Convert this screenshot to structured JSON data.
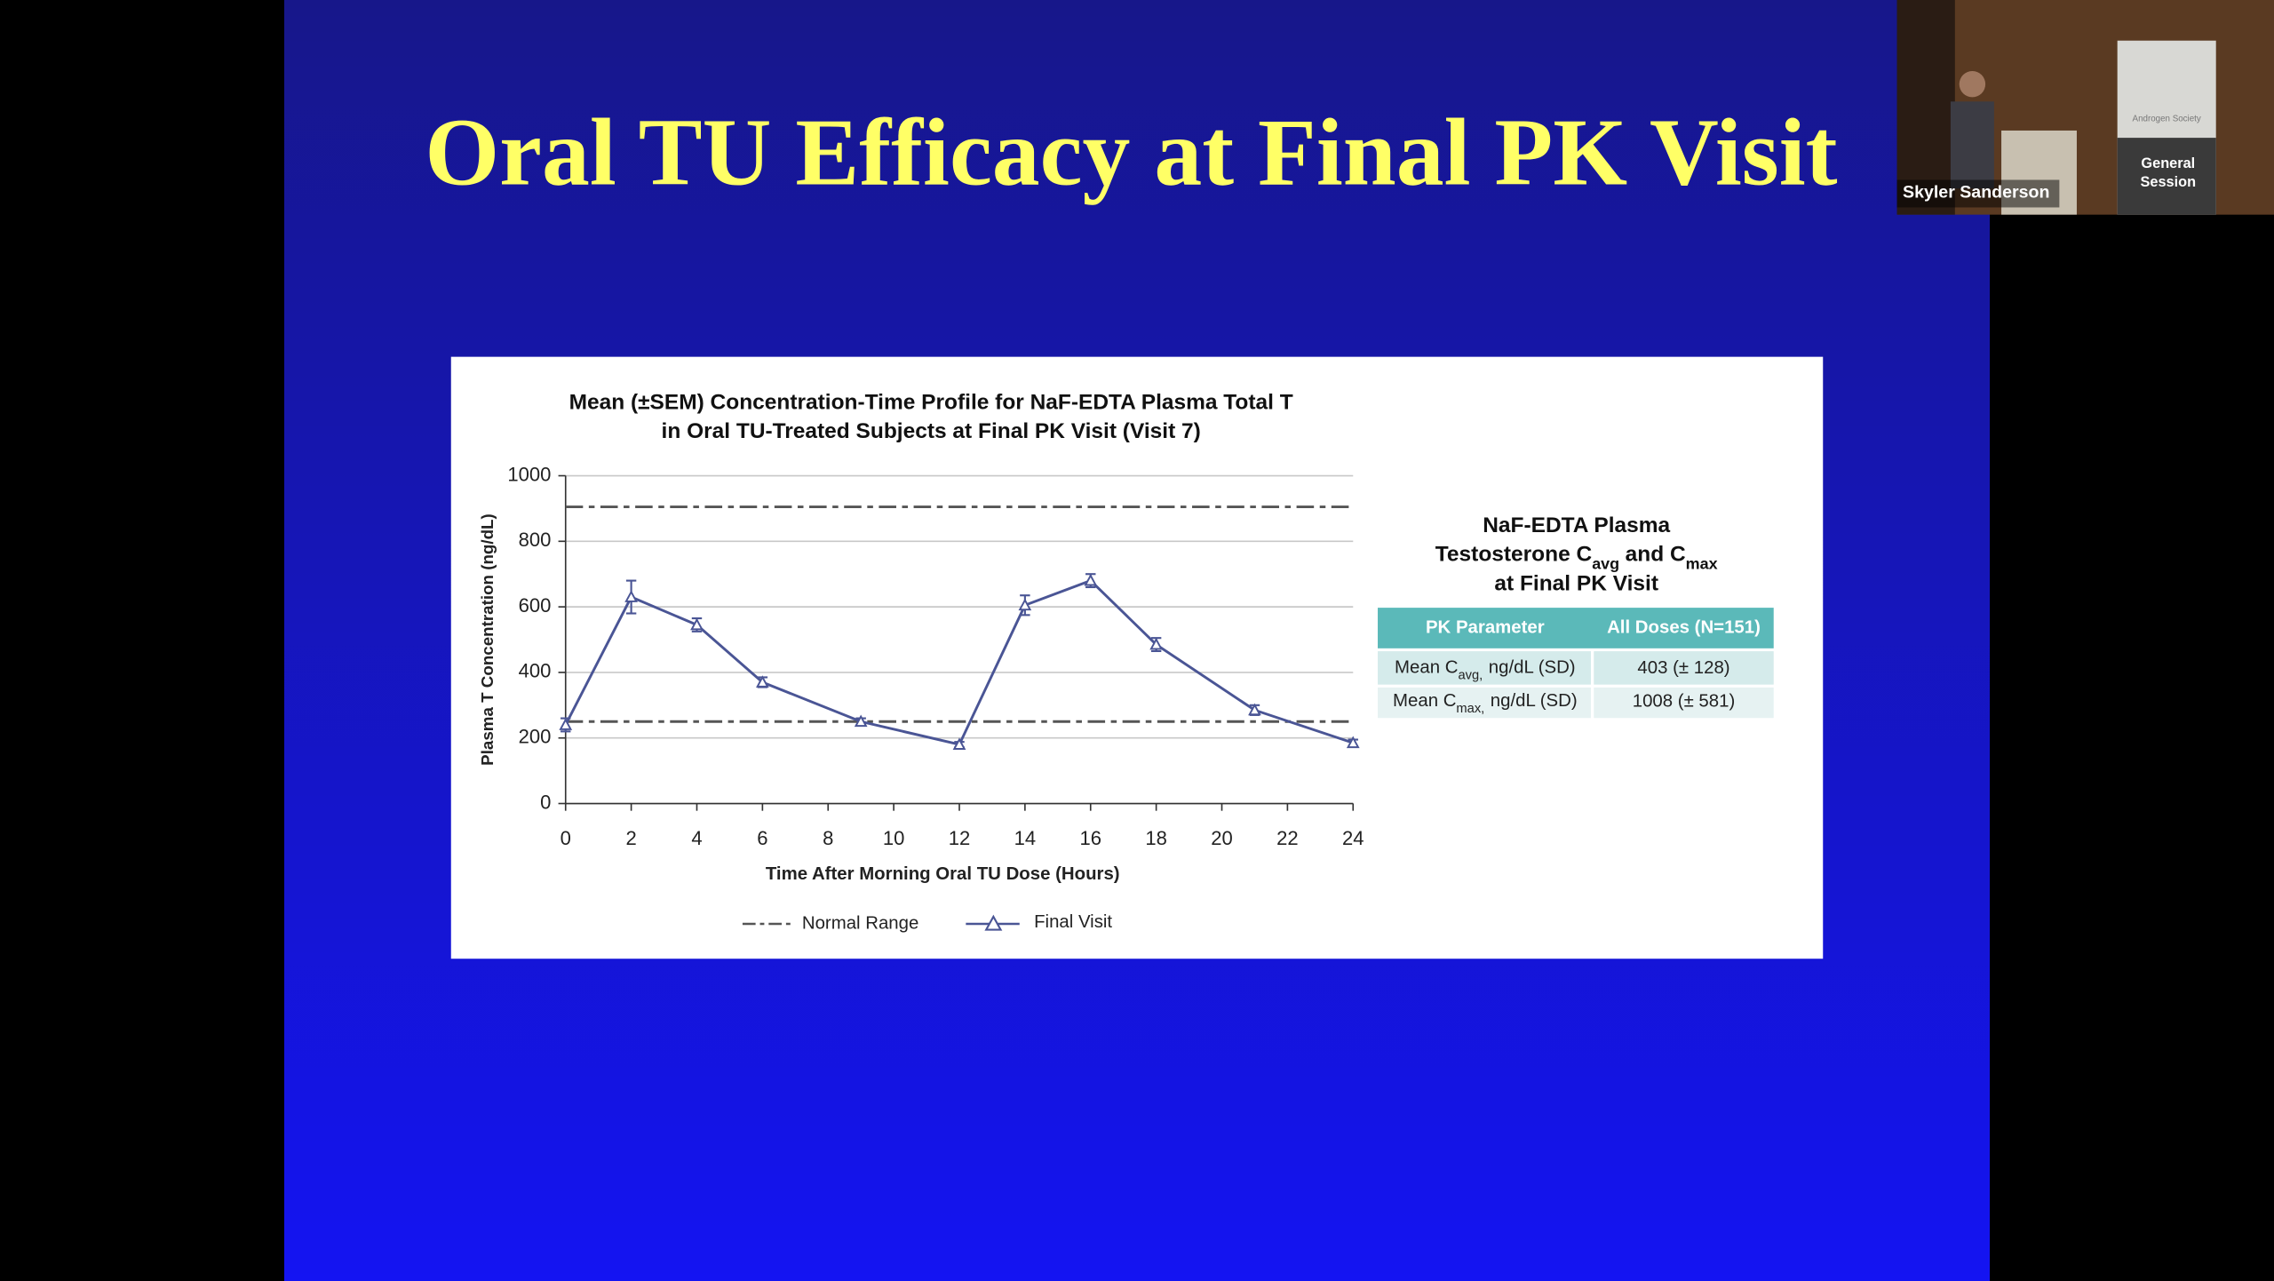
{
  "slide": {
    "title": "Oral TU Efficacy at Final PK Visit"
  },
  "chart_data": {
    "type": "line",
    "title": [
      "Mean (±SEM) Concentration-Time Profile for NaF-EDTA Plasma Total T",
      "in Oral TU-Treated Subjects at Final PK Visit (Visit 7)"
    ],
    "x_label": "Time After Morning Oral TU Dose (Hours)",
    "y_label": "Plasma T Concentration (ng/dL)",
    "x": [
      0,
      2,
      4,
      6,
      9,
      12,
      14,
      16,
      18,
      21,
      24
    ],
    "series": [
      {
        "name": "Final Visit",
        "color": "#4a5595",
        "values": [
          240,
          630,
          545,
          370,
          250,
          180,
          605,
          680,
          485,
          285,
          185
        ],
        "errors": [
          20,
          50,
          20,
          15,
          10,
          8,
          30,
          20,
          20,
          15,
          10
        ]
      }
    ],
    "normal_range": {
      "name": "Normal Range",
      "color": "#555555",
      "values": [
        250,
        905
      ]
    },
    "xlim": [
      0,
      24
    ],
    "xticks": [
      0,
      2,
      4,
      6,
      8,
      10,
      12,
      14,
      16,
      18,
      20,
      22,
      24
    ],
    "ylim": [
      0,
      1000
    ],
    "yticks": [
      0,
      200,
      400,
      600,
      800,
      1000
    ],
    "grid": true
  },
  "table": {
    "title": {
      "line1": "NaF-EDTA Plasma",
      "line2": [
        "Testosterone C",
        "avg",
        "and C",
        "max"
      ],
      "line3": "at Final PK Visit"
    },
    "header": [
      "PK Parameter",
      "All Doses (N=151)"
    ],
    "rows": [
      {
        "label": [
          "Mean C",
          "avg,",
          "ng/dL (SD)"
        ],
        "value": "403 (± 128)"
      },
      {
        "label": [
          "Mean C",
          "max,",
          "ng/dL (SD)"
        ],
        "value": "1008 (± 581)"
      }
    ]
  },
  "video": {
    "name": "Skyler Sanderson",
    "sign": [
      "Androgen Society",
      "General",
      "Session"
    ]
  }
}
